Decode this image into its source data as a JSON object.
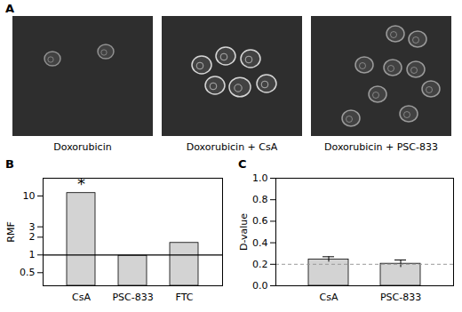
{
  "images": {
    "label": "A",
    "captions": [
      "Doxorubicin",
      "Doxorubicin + CsA",
      "Doxorubicin + PSC-833"
    ]
  },
  "chart_data": [
    {
      "type": "bar",
      "title": "B",
      "ylabel": "RMF",
      "categories": [
        "CsA",
        "PSC-833",
        "FTC"
      ],
      "values": [
        11.2,
        0.97,
        1.6
      ],
      "color": "#d3d3d3",
      "log": "y",
      "ylim": [
        0.3,
        20
      ],
      "yticks": [
        0.5,
        1,
        2,
        3,
        10
      ],
      "reference_line": 1,
      "annotations": [
        {
          "category": "CsA",
          "text": "*"
        }
      ]
    },
    {
      "type": "bar",
      "title": "C",
      "ylabel": "D-value",
      "categories": [
        "CsA",
        "PSC-833"
      ],
      "values": [
        0.245,
        0.205
      ],
      "errors": [
        0.025,
        0.035
      ],
      "color": "#d3d3d3",
      "ylim": [
        0,
        1
      ],
      "yticks": [
        {
          "value": 0,
          "label": "0.0"
        },
        0.2,
        0.4,
        0.6,
        0.8,
        {
          "value": 1,
          "label": "1.0"
        }
      ],
      "reference_line": 0.2
    }
  ]
}
